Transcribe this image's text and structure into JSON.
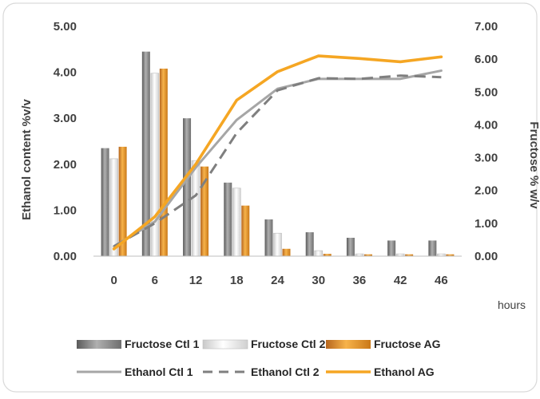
{
  "chart_data": {
    "type": "bar",
    "categories": [
      "0",
      "6",
      "12",
      "18",
      "24",
      "30",
      "36",
      "42",
      "46"
    ],
    "xlabel": "hours",
    "ylabel": "Ethanol content %v/v",
    "y2label": "Fructose % w/v",
    "ylim": [
      0,
      5
    ],
    "yticks": [
      "0.00",
      "1.00",
      "2.00",
      "3.00",
      "4.00",
      "5.00"
    ],
    "y2lim": [
      0,
      7
    ],
    "y2ticks": [
      "0.00",
      "1.00",
      "2.00",
      "3.00",
      "4.00",
      "5.00",
      "6.00",
      "7.00"
    ],
    "grid": false,
    "legend_position": "bottom",
    "bar_series": [
      {
        "name": "Fructose Ctl 1",
        "color": "#808080",
        "values": [
          2.35,
          4.45,
          3.0,
          1.6,
          0.8,
          0.52,
          0.4,
          0.34,
          0.34
        ]
      },
      {
        "name": "Fructose Ctl 2",
        "color": "#e6e6e6",
        "values": [
          2.12,
          3.98,
          2.08,
          1.48,
          0.5,
          0.12,
          0.05,
          0.05,
          0.05
        ]
      },
      {
        "name": "Fructose AG",
        "color": "#e08a1e",
        "values": [
          2.38,
          4.08,
          1.95,
          1.1,
          0.16,
          0.05,
          0.04,
          0.04,
          0.04
        ]
      }
    ],
    "line_series": [
      {
        "name": "Ethanol Ctl 1",
        "axis": "y2",
        "style": "solid",
        "color": "#a6a6a6",
        "values": [
          0.3,
          1.05,
          2.7,
          4.15,
          5.1,
          5.4,
          5.4,
          5.4,
          5.65
        ]
      },
      {
        "name": "Ethanol Ctl 2",
        "axis": "y2",
        "style": "dashed",
        "color": "#7f7f7f",
        "values": [
          0.3,
          1.0,
          1.85,
          3.75,
          5.05,
          5.42,
          5.4,
          5.5,
          5.45
        ]
      },
      {
        "name": "Ethanol AG",
        "axis": "y2",
        "style": "solid",
        "color": "#f5a623",
        "values": [
          0.22,
          1.2,
          2.8,
          4.75,
          5.62,
          6.1,
          6.02,
          5.92,
          6.07
        ]
      }
    ]
  }
}
